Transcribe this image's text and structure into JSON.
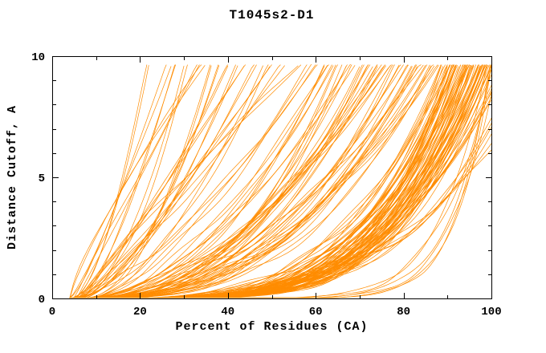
{
  "chart_data": {
    "type": "line",
    "title": "T1045s2-D1",
    "xlabel": "Percent of Residues (CA)",
    "ylabel": "Distance Cutoff, A",
    "xlim": [
      0,
      100
    ],
    "ylim": [
      0,
      10
    ],
    "xticks": [
      0,
      20,
      40,
      60,
      80,
      100
    ],
    "xminor": [
      10,
      30,
      50,
      70,
      90
    ],
    "yticks": [
      0,
      5,
      10
    ],
    "yminor": [
      1,
      2,
      3,
      4,
      6,
      7,
      8,
      9
    ],
    "grid": false,
    "legend": "none",
    "color": "#ff8c00",
    "frame_color": "#000000",
    "y_top": 9.65,
    "replicates": 2,
    "curve_model": "Bundle of per-model cumulative GDT curves, estimated: distance = y_top*((p-start)/(end-start))^power for percent p in [start,end], clipped to the axes box. Each entry is [start_percent, percent_reaching_top, power].",
    "curves": [
      [
        5,
        22,
        1.6
      ],
      [
        4,
        26,
        1.2
      ],
      [
        6,
        30,
        1.8
      ],
      [
        5,
        33,
        1.0
      ],
      [
        7,
        36,
        2.0
      ],
      [
        4,
        40,
        1.4
      ],
      [
        6,
        44,
        1.1
      ],
      [
        8,
        48,
        1.7
      ],
      [
        5,
        52,
        1.3
      ],
      [
        6,
        56,
        0.9
      ],
      [
        4,
        60,
        1.5
      ],
      [
        7,
        28,
        1.3
      ],
      [
        5,
        38,
        1.9
      ],
      [
        6,
        50,
        1.2
      ],
      [
        8,
        58,
        1.6
      ],
      [
        4,
        34,
        0.8
      ],
      [
        7,
        46,
        1.4
      ],
      [
        5,
        42,
        1.7
      ],
      [
        5,
        62,
        2.4
      ],
      [
        6,
        64,
        2.0
      ],
      [
        4,
        66,
        2.8
      ],
      [
        7,
        68,
        1.8
      ],
      [
        5,
        70,
        2.6
      ],
      [
        6,
        72,
        2.2
      ],
      [
        8,
        74,
        2.5
      ],
      [
        4,
        76,
        2.0
      ],
      [
        5,
        78,
        2.9
      ],
      [
        6,
        80,
        2.3
      ],
      [
        7,
        82,
        2.7
      ],
      [
        5,
        84,
        2.1
      ],
      [
        6,
        86,
        3.0
      ],
      [
        4,
        88,
        2.4
      ],
      [
        9,
        63,
        1.7
      ],
      [
        10,
        67,
        2.2
      ],
      [
        8,
        71,
        2.6
      ],
      [
        9,
        75,
        1.9
      ],
      [
        10,
        79,
        2.4
      ],
      [
        8,
        83,
        2.8
      ],
      [
        9,
        87,
        2.2
      ],
      [
        11,
        65,
        2.5
      ],
      [
        12,
        73,
        2.0
      ],
      [
        11,
        81,
        2.6
      ],
      [
        12,
        85,
        2.3
      ],
      [
        10,
        77,
        1.8
      ],
      [
        5,
        88.5,
        4.0
      ],
      [
        6,
        89,
        4.6
      ],
      [
        4,
        89.5,
        3.6
      ],
      [
        7,
        90,
        5.2
      ],
      [
        5,
        90.5,
        4.2
      ],
      [
        6,
        91,
        4.8
      ],
      [
        8,
        91.5,
        3.8
      ],
      [
        4,
        92,
        5.5
      ],
      [
        5,
        92.5,
        4.4
      ],
      [
        6,
        93,
        5.0
      ],
      [
        7,
        93.5,
        4.1
      ],
      [
        5,
        94,
        5.8
      ],
      [
        6,
        94.5,
        4.6
      ],
      [
        4,
        95,
        3.7
      ],
      [
        8,
        95.5,
        5.1
      ],
      [
        5,
        96,
        4.3
      ],
      [
        6,
        96.5,
        5.4
      ],
      [
        7,
        97,
        4.0
      ],
      [
        5,
        97.5,
        4.8
      ],
      [
        6,
        98,
        4.5
      ],
      [
        4,
        98.5,
        5.2
      ],
      [
        8,
        99,
        4.1
      ],
      [
        5,
        99.5,
        4.9
      ],
      [
        6,
        100,
        4.6
      ],
      [
        7,
        90,
        3.5
      ],
      [
        5,
        92,
        4.0
      ],
      [
        6,
        94,
        4.4
      ],
      [
        8,
        96,
        3.9
      ],
      [
        4,
        98,
        4.3
      ],
      [
        9,
        91,
        4.7
      ],
      [
        10,
        93,
        4.1
      ],
      [
        9,
        95,
        4.6
      ],
      [
        10,
        97,
        4.0
      ],
      [
        9,
        99,
        4.4
      ],
      [
        11,
        92,
        3.7
      ],
      [
        12,
        96,
        4.2
      ],
      [
        11,
        98,
        3.8
      ],
      [
        10,
        90,
        4.9
      ],
      [
        12,
        94,
        3.6
      ],
      [
        9,
        100,
        4.1
      ],
      [
        5,
        100,
        12
      ],
      [
        6,
        100,
        10
      ],
      [
        4,
        99,
        9
      ],
      [
        6,
        102,
        4.0
      ],
      [
        8,
        104,
        3.6
      ],
      [
        5,
        106,
        4.5
      ],
      [
        10,
        103,
        3.8
      ],
      [
        7,
        108,
        4.2
      ],
      [
        9,
        112,
        3.4
      ]
    ]
  }
}
